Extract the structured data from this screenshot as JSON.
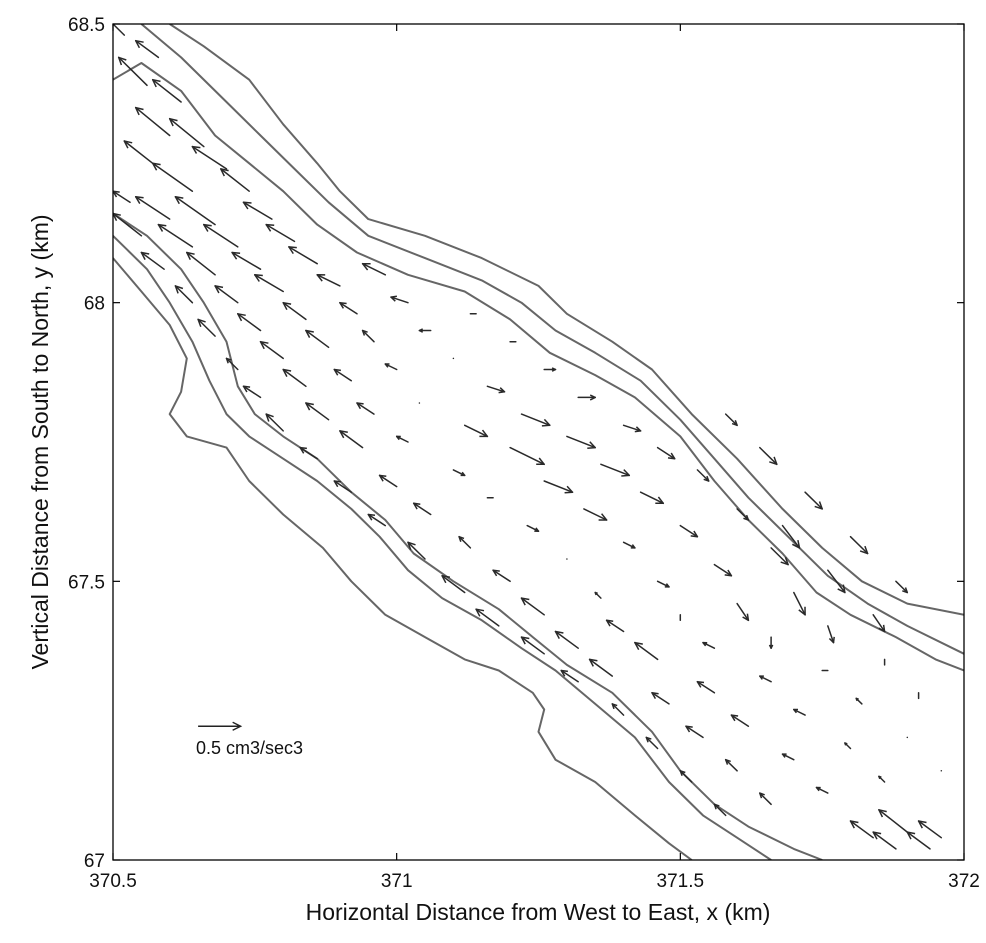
{
  "chart_data": {
    "type": "quiver",
    "title": "",
    "xlabel": "Horizontal Distance from West to East, x (km)",
    "ylabel": "Vertical Distance from South to North, y (km)",
    "xlim": [
      370.5,
      372
    ],
    "ylim": [
      67,
      68.5
    ],
    "x_ticks": [
      "370.5",
      "371",
      "371.5",
      "372"
    ],
    "y_ticks": [
      "67",
      "67.5",
      "68",
      "68.5"
    ],
    "x_tick_values": [
      370.5,
      371,
      371.5,
      372
    ],
    "y_tick_values": [
      67,
      67.5,
      68,
      68.5
    ],
    "grid": false,
    "scale_arrow": {
      "label": "0.5 cm3/sec3",
      "magnitude": 0.5,
      "x": 370.65,
      "y": 67.24
    },
    "contours": [
      [
        [
          370.6,
          68.5
        ],
        [
          370.66,
          68.46
        ],
        [
          370.74,
          68.4
        ],
        [
          370.8,
          68.32
        ],
        [
          370.86,
          68.25
        ],
        [
          370.9,
          68.2
        ],
        [
          370.95,
          68.15
        ],
        [
          371.05,
          68.12
        ],
        [
          371.15,
          68.08
        ],
        [
          371.25,
          68.03
        ],
        [
          371.3,
          67.98
        ],
        [
          371.38,
          67.93
        ],
        [
          371.45,
          67.88
        ],
        [
          371.52,
          67.8
        ],
        [
          371.6,
          67.72
        ],
        [
          371.68,
          67.63
        ],
        [
          371.75,
          67.56
        ],
        [
          371.82,
          67.5
        ],
        [
          371.9,
          67.46
        ],
        [
          372,
          67.44
        ]
      ],
      [
        [
          370.55,
          68.5
        ],
        [
          370.62,
          68.44
        ],
        [
          370.7,
          68.36
        ],
        [
          370.76,
          68.3
        ],
        [
          370.82,
          68.24
        ],
        [
          370.88,
          68.18
        ],
        [
          370.95,
          68.12
        ],
        [
          371.05,
          68.08
        ],
        [
          371.15,
          68.04
        ],
        [
          371.22,
          68.0
        ],
        [
          371.28,
          67.95
        ],
        [
          371.35,
          67.91
        ],
        [
          371.43,
          67.86
        ],
        [
          371.5,
          67.79
        ],
        [
          371.56,
          67.72
        ],
        [
          371.62,
          67.65
        ],
        [
          371.7,
          67.57
        ],
        [
          371.76,
          67.51
        ],
        [
          371.83,
          67.46
        ],
        [
          371.9,
          67.42
        ],
        [
          372,
          67.37
        ]
      ],
      [
        [
          370.5,
          68.4
        ],
        [
          370.55,
          68.43
        ],
        [
          370.62,
          68.38
        ],
        [
          370.68,
          68.3
        ],
        [
          370.74,
          68.25
        ],
        [
          370.8,
          68.2
        ],
        [
          370.86,
          68.14
        ],
        [
          370.93,
          68.09
        ],
        [
          371.02,
          68.05
        ],
        [
          371.12,
          68.02
        ],
        [
          371.2,
          67.97
        ],
        [
          371.27,
          67.91
        ],
        [
          371.35,
          67.87
        ],
        [
          371.42,
          67.83
        ],
        [
          371.5,
          67.76
        ],
        [
          371.56,
          67.68
        ],
        [
          371.62,
          67.61
        ],
        [
          371.68,
          67.55
        ],
        [
          371.74,
          67.48
        ],
        [
          371.8,
          67.44
        ],
        [
          371.88,
          67.4
        ],
        [
          371.95,
          67.36
        ],
        [
          372,
          67.34
        ]
      ],
      [
        [
          370.5,
          68.16
        ],
        [
          370.56,
          68.12
        ],
        [
          370.62,
          68.06
        ],
        [
          370.66,
          68.0
        ],
        [
          370.7,
          67.93
        ],
        [
          370.72,
          67.85
        ],
        [
          370.75,
          67.8
        ],
        [
          370.8,
          67.76
        ],
        [
          370.86,
          67.72
        ],
        [
          370.92,
          67.66
        ],
        [
          370.98,
          67.61
        ],
        [
          371.03,
          67.55
        ],
        [
          371.1,
          67.5
        ],
        [
          371.18,
          67.45
        ],
        [
          371.24,
          67.4
        ],
        [
          371.3,
          67.35
        ],
        [
          371.38,
          67.3
        ],
        [
          371.45,
          67.23
        ],
        [
          371.5,
          67.16
        ],
        [
          371.56,
          67.1
        ],
        [
          371.62,
          67.06
        ],
        [
          371.7,
          67.02
        ],
        [
          371.75,
          67.0
        ]
      ],
      [
        [
          370.5,
          68.12
        ],
        [
          370.56,
          68.06
        ],
        [
          370.6,
          68.0
        ],
        [
          370.64,
          67.93
        ],
        [
          370.67,
          67.86
        ],
        [
          370.7,
          67.8
        ],
        [
          370.74,
          67.76
        ],
        [
          370.8,
          67.72
        ],
        [
          370.86,
          67.68
        ],
        [
          370.92,
          67.63
        ],
        [
          370.97,
          67.58
        ],
        [
          371.02,
          67.52
        ],
        [
          371.08,
          67.47
        ],
        [
          371.15,
          67.43
        ],
        [
          371.22,
          67.38
        ],
        [
          371.28,
          67.34
        ],
        [
          371.35,
          67.28
        ],
        [
          371.42,
          67.22
        ],
        [
          371.48,
          67.14
        ],
        [
          371.54,
          67.08
        ],
        [
          371.6,
          67.04
        ],
        [
          371.66,
          67.0
        ]
      ],
      [
        [
          370.5,
          68.08
        ],
        [
          370.55,
          68.02
        ],
        [
          370.6,
          67.96
        ],
        [
          370.63,
          67.9
        ],
        [
          370.62,
          67.84
        ],
        [
          370.6,
          67.8
        ],
        [
          370.63,
          67.76
        ],
        [
          370.7,
          67.74
        ],
        [
          370.74,
          67.68
        ],
        [
          370.8,
          67.62
        ],
        [
          370.87,
          67.56
        ],
        [
          370.92,
          67.5
        ],
        [
          370.98,
          67.44
        ],
        [
          371.05,
          67.4
        ],
        [
          371.12,
          67.36
        ],
        [
          371.18,
          67.34
        ],
        [
          371.24,
          67.3
        ],
        [
          371.26,
          67.27
        ],
        [
          371.25,
          67.23
        ],
        [
          371.28,
          67.18
        ],
        [
          371.35,
          67.14
        ],
        [
          371.42,
          67.08
        ],
        [
          371.48,
          67.03
        ],
        [
          371.52,
          67.0
        ]
      ]
    ],
    "vectors": [
      [
        370.52,
        68.48,
        -0.03,
        0.03
      ],
      [
        370.58,
        68.44,
        -0.04,
        0.03
      ],
      [
        370.56,
        68.39,
        -0.05,
        0.05
      ],
      [
        370.62,
        68.36,
        -0.05,
        0.04
      ],
      [
        370.6,
        68.3,
        -0.06,
        0.05
      ],
      [
        370.66,
        68.28,
        -0.06,
        0.05
      ],
      [
        370.57,
        68.25,
        -0.05,
        0.04
      ],
      [
        370.7,
        68.24,
        -0.06,
        0.04
      ],
      [
        370.64,
        68.2,
        -0.07,
        0.05
      ],
      [
        370.53,
        68.18,
        -0.03,
        0.02
      ],
      [
        370.74,
        68.2,
        -0.05,
        0.04
      ],
      [
        370.6,
        68.15,
        -0.06,
        0.04
      ],
      [
        370.68,
        68.14,
        -0.07,
        0.05
      ],
      [
        370.78,
        68.15,
        -0.05,
        0.03
      ],
      [
        370.55,
        68.12,
        -0.05,
        0.04
      ],
      [
        370.64,
        68.1,
        -0.06,
        0.04
      ],
      [
        370.72,
        68.1,
        -0.06,
        0.04
      ],
      [
        370.82,
        68.11,
        -0.05,
        0.03
      ],
      [
        370.59,
        68.06,
        -0.04,
        0.03
      ],
      [
        370.68,
        68.05,
        -0.05,
        0.04
      ],
      [
        370.76,
        68.06,
        -0.05,
        0.03
      ],
      [
        370.86,
        68.07,
        -0.05,
        0.03
      ],
      [
        370.64,
        68.0,
        -0.03,
        0.03
      ],
      [
        370.72,
        68.0,
        -0.04,
        0.03
      ],
      [
        370.8,
        68.02,
        -0.05,
        0.03
      ],
      [
        370.9,
        68.03,
        -0.04,
        0.02
      ],
      [
        370.98,
        68.05,
        -0.04,
        0.02
      ],
      [
        370.68,
        67.94,
        -0.03,
        0.03
      ],
      [
        370.76,
        67.95,
        -0.04,
        0.03
      ],
      [
        370.84,
        67.97,
        -0.04,
        0.03
      ],
      [
        370.93,
        67.98,
        -0.03,
        0.02
      ],
      [
        371.02,
        68.0,
        -0.03,
        0.01
      ],
      [
        370.72,
        67.88,
        -0.02,
        0.02
      ],
      [
        370.8,
        67.9,
        -0.04,
        0.03
      ],
      [
        370.88,
        67.92,
        -0.04,
        0.03
      ],
      [
        370.96,
        67.93,
        -0.02,
        0.02
      ],
      [
        371.06,
        67.95,
        -0.02,
        0.0
      ],
      [
        371.14,
        67.98,
        -0.01,
        0.0
      ],
      [
        370.76,
        67.83,
        -0.03,
        0.02
      ],
      [
        370.84,
        67.85,
        -0.04,
        0.03
      ],
      [
        370.92,
        67.86,
        -0.03,
        0.02
      ],
      [
        371.0,
        67.88,
        -0.02,
        0.01
      ],
      [
        371.1,
        67.9,
        0.0,
        0.0
      ],
      [
        371.2,
        67.93,
        0.01,
        0.0
      ],
      [
        370.8,
        67.77,
        -0.03,
        0.03
      ],
      [
        370.88,
        67.79,
        -0.04,
        0.03
      ],
      [
        370.96,
        67.8,
        -0.03,
        0.02
      ],
      [
        371.04,
        67.82,
        0.0,
        0.0
      ],
      [
        371.16,
        67.85,
        0.03,
        -0.01
      ],
      [
        371.26,
        67.88,
        0.02,
        0.0
      ],
      [
        370.86,
        67.72,
        -0.03,
        0.02
      ],
      [
        370.94,
        67.74,
        -0.04,
        0.03
      ],
      [
        371.02,
        67.75,
        -0.02,
        0.01
      ],
      [
        371.12,
        67.78,
        0.04,
        -0.02
      ],
      [
        371.22,
        67.8,
        0.05,
        -0.02
      ],
      [
        371.32,
        67.83,
        0.03,
        0.0
      ],
      [
        370.92,
        67.66,
        -0.03,
        0.02
      ],
      [
        371.0,
        67.67,
        -0.03,
        0.02
      ],
      [
        371.1,
        67.7,
        0.02,
        -0.01
      ],
      [
        371.2,
        67.74,
        0.06,
        -0.03
      ],
      [
        371.3,
        67.76,
        0.05,
        -0.02
      ],
      [
        371.4,
        67.78,
        0.03,
        -0.01
      ],
      [
        370.98,
        67.6,
        -0.03,
        0.02
      ],
      [
        371.06,
        67.62,
        -0.03,
        0.02
      ],
      [
        371.16,
        67.65,
        0.01,
        0.0
      ],
      [
        371.26,
        67.68,
        0.05,
        -0.02
      ],
      [
        371.36,
        67.71,
        0.05,
        -0.02
      ],
      [
        371.46,
        67.74,
        0.03,
        -0.02
      ],
      [
        371.05,
        67.54,
        -0.03,
        0.03
      ],
      [
        371.13,
        67.56,
        -0.02,
        0.02
      ],
      [
        371.23,
        67.6,
        0.02,
        -0.01
      ],
      [
        371.33,
        67.63,
        0.04,
        -0.02
      ],
      [
        371.43,
        67.66,
        0.04,
        -0.02
      ],
      [
        371.53,
        67.7,
        0.02,
        -0.02
      ],
      [
        371.12,
        67.48,
        -0.04,
        0.03
      ],
      [
        371.2,
        67.5,
        -0.03,
        0.02
      ],
      [
        371.3,
        67.54,
        0.0,
        0.0
      ],
      [
        371.4,
        67.57,
        0.02,
        -0.01
      ],
      [
        371.5,
        67.6,
        0.03,
        -0.02
      ],
      [
        371.6,
        67.63,
        0.02,
        -0.02
      ],
      [
        371.18,
        67.42,
        -0.04,
        0.03
      ],
      [
        371.26,
        67.44,
        -0.04,
        0.03
      ],
      [
        371.36,
        67.47,
        -0.01,
        0.01
      ],
      [
        371.46,
        67.5,
        0.02,
        -0.01
      ],
      [
        371.56,
        67.53,
        0.03,
        -0.02
      ],
      [
        371.66,
        67.56,
        0.03,
        -0.03
      ],
      [
        371.26,
        67.37,
        -0.04,
        0.03
      ],
      [
        371.32,
        67.38,
        -0.04,
        0.03
      ],
      [
        371.4,
        67.41,
        -0.03,
        0.02
      ],
      [
        371.5,
        67.44,
        0.0,
        -0.01
      ],
      [
        371.6,
        67.46,
        0.02,
        -0.03
      ],
      [
        371.7,
        67.48,
        0.02,
        -0.04
      ],
      [
        371.32,
        67.32,
        -0.03,
        0.02
      ],
      [
        371.38,
        67.33,
        -0.04,
        0.03
      ],
      [
        371.46,
        67.36,
        -0.04,
        0.03
      ],
      [
        371.56,
        67.38,
        -0.02,
        0.01
      ],
      [
        371.66,
        67.4,
        0.0,
        -0.02
      ],
      [
        371.76,
        67.42,
        0.01,
        -0.03
      ],
      [
        371.4,
        67.26,
        -0.02,
        0.02
      ],
      [
        371.48,
        67.28,
        -0.03,
        0.02
      ],
      [
        371.56,
        67.3,
        -0.03,
        0.02
      ],
      [
        371.66,
        67.32,
        -0.02,
        0.01
      ],
      [
        371.76,
        67.34,
        -0.01,
        0.0
      ],
      [
        371.86,
        67.36,
        0.0,
        -0.01
      ],
      [
        371.46,
        67.2,
        -0.02,
        0.02
      ],
      [
        371.54,
        67.22,
        -0.03,
        0.02
      ],
      [
        371.62,
        67.24,
        -0.03,
        0.02
      ],
      [
        371.72,
        67.26,
        -0.02,
        0.01
      ],
      [
        371.82,
        67.28,
        -0.01,
        0.01
      ],
      [
        371.92,
        67.3,
        0.0,
        -0.01
      ],
      [
        371.52,
        67.14,
        -0.02,
        0.02
      ],
      [
        371.6,
        67.16,
        -0.02,
        0.02
      ],
      [
        371.7,
        67.18,
        -0.02,
        0.01
      ],
      [
        371.8,
        67.2,
        -0.01,
        0.01
      ],
      [
        371.9,
        67.22,
        0.0,
        0.0
      ],
      [
        371.58,
        67.08,
        -0.02,
        0.02
      ],
      [
        371.66,
        67.1,
        -0.02,
        0.02
      ],
      [
        371.76,
        67.12,
        -0.02,
        0.01
      ],
      [
        371.86,
        67.14,
        -0.01,
        0.01
      ],
      [
        371.96,
        67.16,
        0.0,
        0.0
      ],
      [
        371.84,
        67.04,
        -0.04,
        0.03
      ],
      [
        371.9,
        67.05,
        -0.05,
        0.04
      ],
      [
        371.96,
        67.04,
        -0.04,
        0.03
      ],
      [
        371.88,
        67.02,
        -0.04,
        0.03
      ],
      [
        371.94,
        67.02,
        -0.04,
        0.03
      ],
      [
        371.58,
        67.8,
        0.02,
        -0.02
      ],
      [
        371.64,
        67.74,
        0.03,
        -0.03
      ],
      [
        371.72,
        67.66,
        0.03,
        -0.03
      ],
      [
        371.8,
        67.58,
        0.03,
        -0.03
      ],
      [
        371.88,
        67.5,
        0.02,
        -0.02
      ],
      [
        371.68,
        67.6,
        0.03,
        -0.04
      ],
      [
        371.76,
        67.52,
        0.03,
        -0.04
      ],
      [
        371.84,
        67.44,
        0.02,
        -0.03
      ]
    ]
  }
}
